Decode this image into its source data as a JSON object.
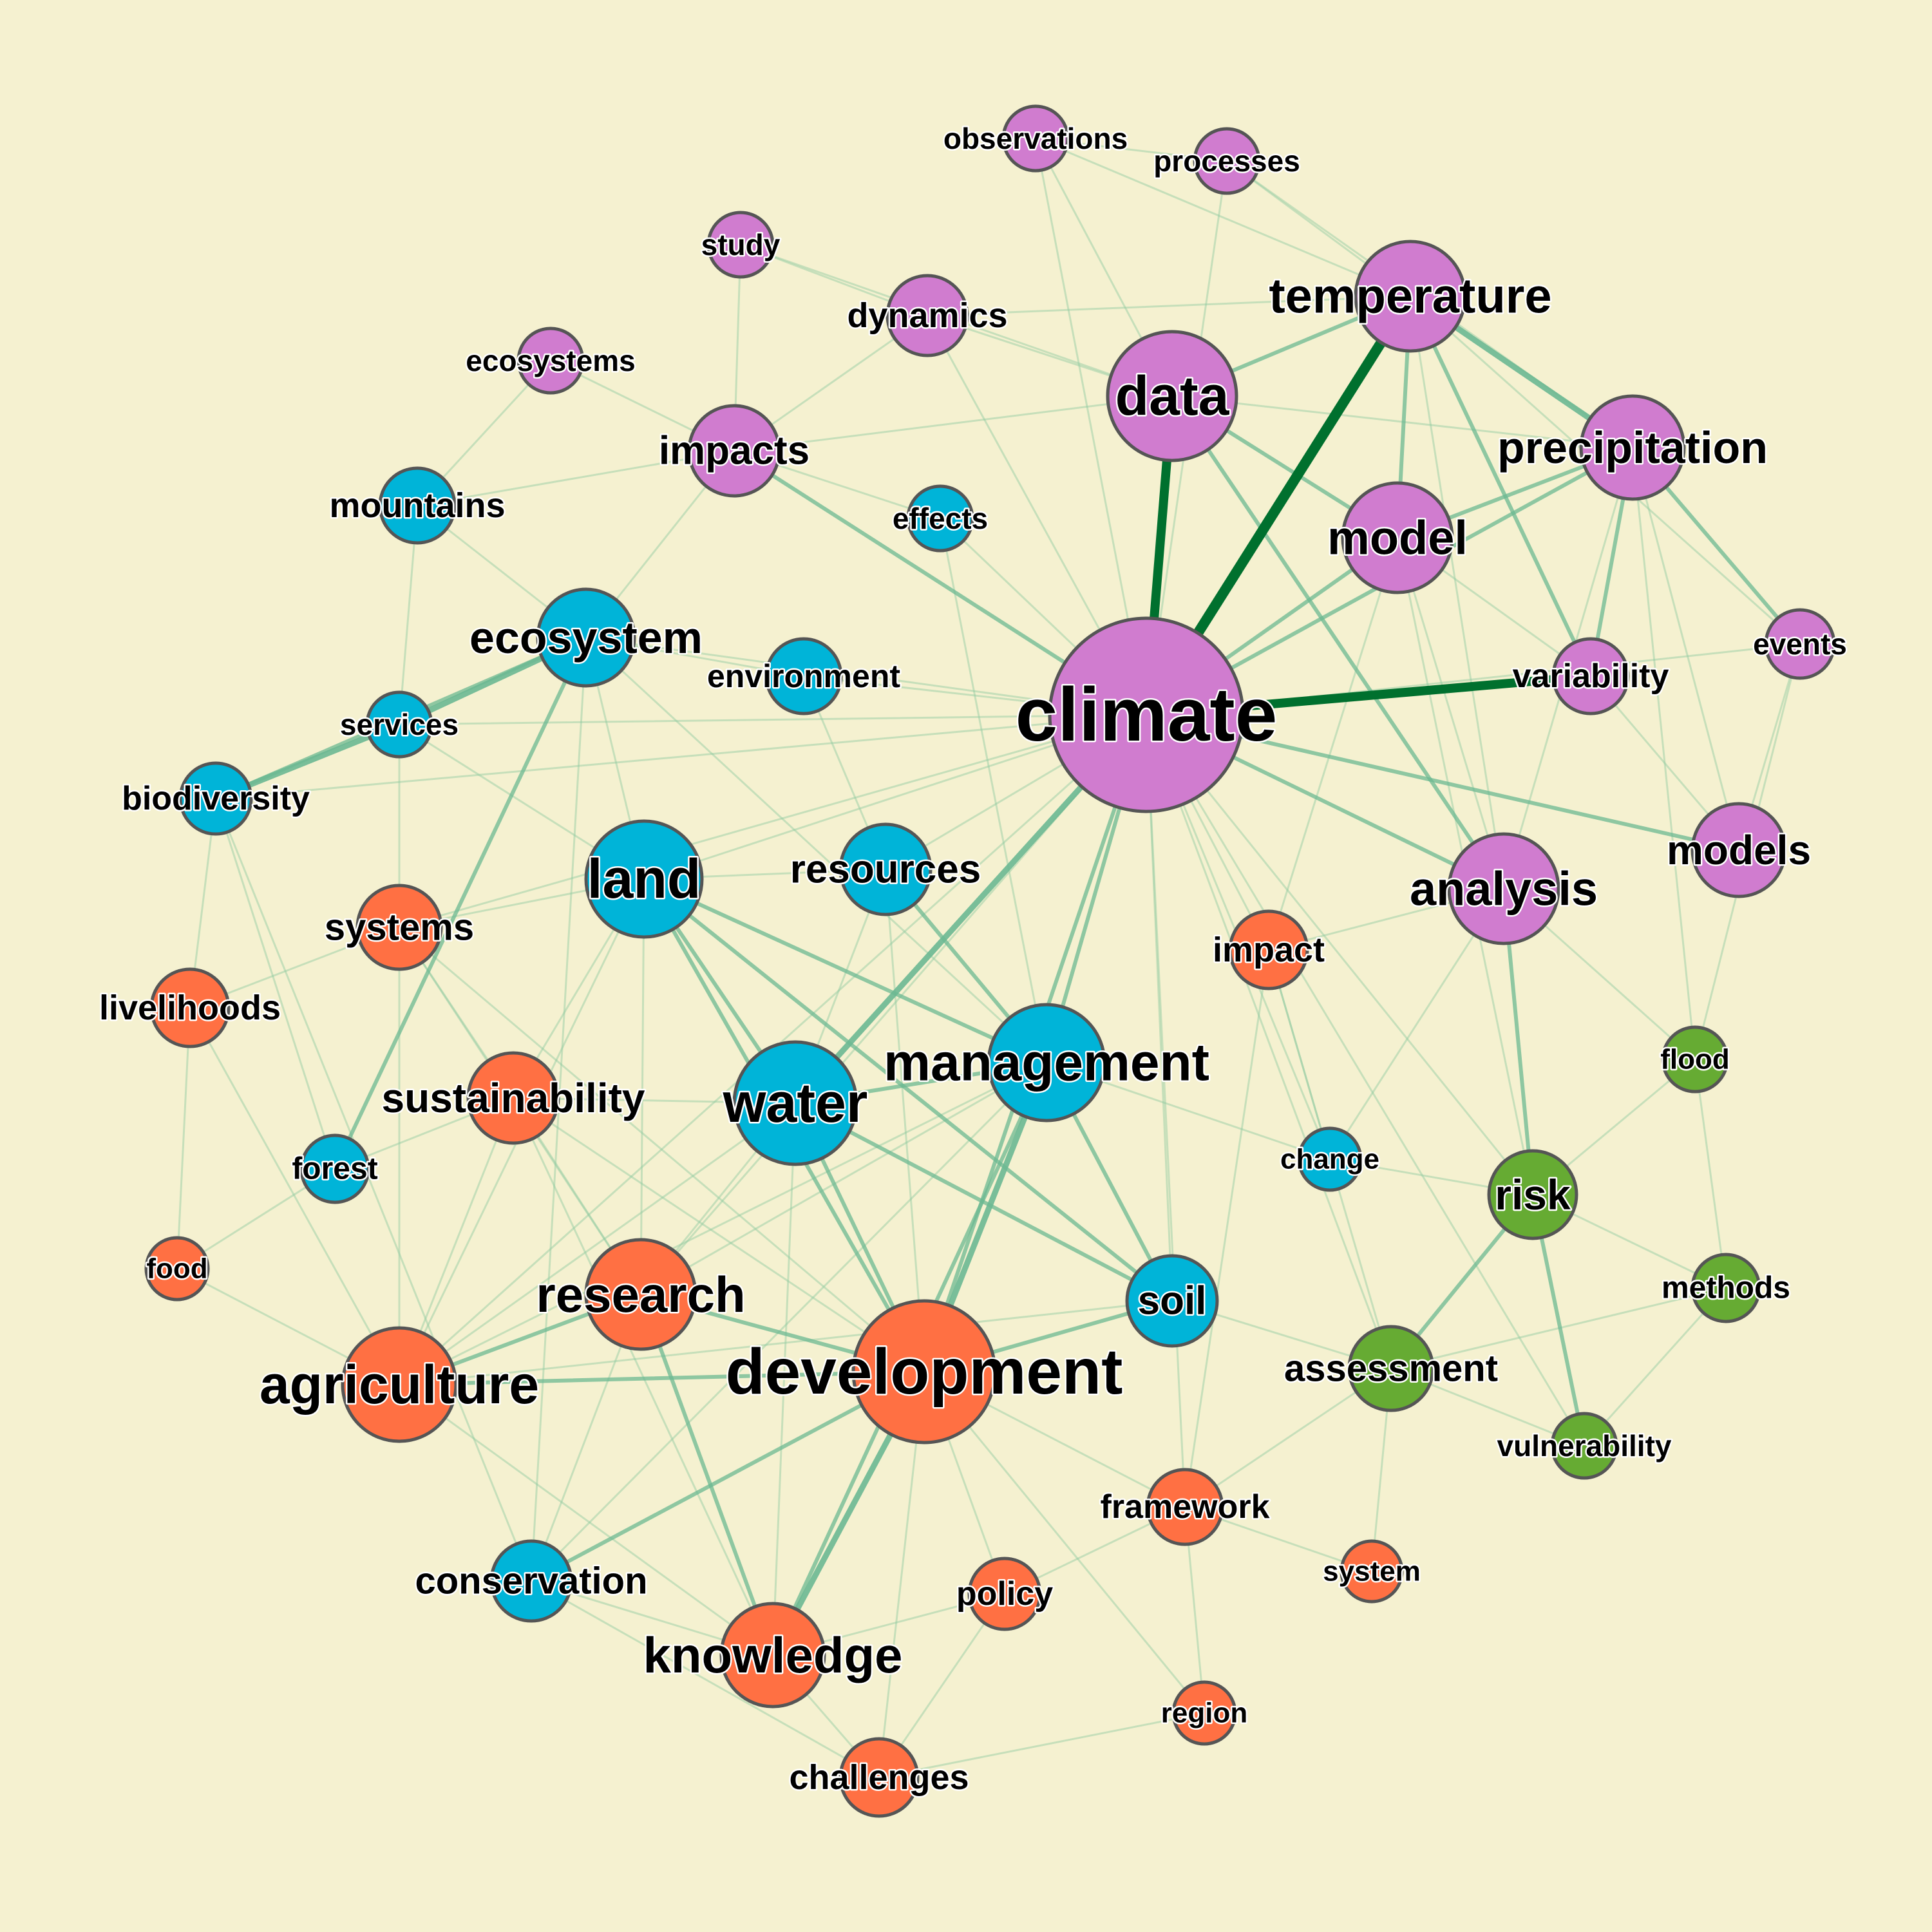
{
  "colors": {
    "background": "#f5f1d0",
    "purple": "#d07ccf",
    "blue": "#00b4d8",
    "orange": "#ff7043",
    "green": "#66ab33",
    "edge_light": "#8fc9a0",
    "edge_mid": "#6bb892",
    "edge_strong": "#00702e"
  },
  "nodes": [
    {
      "id": "climate",
      "label": "climate",
      "group": "purple"
    },
    {
      "id": "data",
      "label": "data",
      "group": "purple"
    },
    {
      "id": "temperature",
      "label": "temperature",
      "group": "purple"
    },
    {
      "id": "precipitation",
      "label": "precipitation",
      "group": "purple"
    },
    {
      "id": "model",
      "label": "model",
      "group": "purple"
    },
    {
      "id": "analysis",
      "label": "analysis",
      "group": "purple"
    },
    {
      "id": "models",
      "label": "models",
      "group": "purple"
    },
    {
      "id": "variability",
      "label": "variability",
      "group": "purple"
    },
    {
      "id": "events",
      "label": "events",
      "group": "purple"
    },
    {
      "id": "impacts",
      "label": "impacts",
      "group": "purple"
    },
    {
      "id": "dynamics",
      "label": "dynamics",
      "group": "purple"
    },
    {
      "id": "study",
      "label": "study",
      "group": "purple"
    },
    {
      "id": "observations",
      "label": "observations",
      "group": "purple"
    },
    {
      "id": "processes",
      "label": "processes",
      "group": "purple"
    },
    {
      "id": "ecosystems",
      "label": "ecosystems",
      "group": "purple"
    },
    {
      "id": "mountains",
      "label": "mountains",
      "group": "blue"
    },
    {
      "id": "effects",
      "label": "effects",
      "group": "blue"
    },
    {
      "id": "ecosystem",
      "label": "ecosystem",
      "group": "blue"
    },
    {
      "id": "environment",
      "label": "environment",
      "group": "blue"
    },
    {
      "id": "services",
      "label": "services",
      "group": "blue"
    },
    {
      "id": "biodiversity",
      "label": "biodiversity",
      "group": "blue"
    },
    {
      "id": "land",
      "label": "land",
      "group": "blue"
    },
    {
      "id": "resources",
      "label": "resources",
      "group": "blue"
    },
    {
      "id": "management",
      "label": "management",
      "group": "blue"
    },
    {
      "id": "water",
      "label": "water",
      "group": "blue"
    },
    {
      "id": "forest",
      "label": "forest",
      "group": "blue"
    },
    {
      "id": "change",
      "label": "change",
      "group": "blue"
    },
    {
      "id": "soil",
      "label": "soil",
      "group": "blue"
    },
    {
      "id": "conservation",
      "label": "conservation",
      "group": "blue"
    },
    {
      "id": "systems",
      "label": "systems",
      "group": "orange"
    },
    {
      "id": "livelihoods",
      "label": "livelihoods",
      "group": "orange"
    },
    {
      "id": "impact",
      "label": "impact",
      "group": "orange"
    },
    {
      "id": "sustainability",
      "label": "sustainability",
      "group": "orange"
    },
    {
      "id": "food",
      "label": "food",
      "group": "orange"
    },
    {
      "id": "research",
      "label": "research",
      "group": "orange"
    },
    {
      "id": "agriculture",
      "label": "agriculture",
      "group": "orange"
    },
    {
      "id": "development",
      "label": "development",
      "group": "orange"
    },
    {
      "id": "framework",
      "label": "framework",
      "group": "orange"
    },
    {
      "id": "system",
      "label": "system",
      "group": "orange"
    },
    {
      "id": "policy",
      "label": "policy",
      "group": "orange"
    },
    {
      "id": "knowledge",
      "label": "knowledge",
      "group": "orange"
    },
    {
      "id": "region",
      "label": "region",
      "group": "orange"
    },
    {
      "id": "challenges",
      "label": "challenges",
      "group": "orange"
    },
    {
      "id": "flood",
      "label": "flood",
      "group": "green"
    },
    {
      "id": "risk",
      "label": "risk",
      "group": "green"
    },
    {
      "id": "methods",
      "label": "methods",
      "group": "green"
    },
    {
      "id": "assessment",
      "label": "assessment",
      "group": "green"
    },
    {
      "id": "vulnerability",
      "label": "vulnerability",
      "group": "green"
    }
  ],
  "edges": [
    [
      "climate",
      "temperature",
      5
    ],
    [
      "climate",
      "data",
      4
    ],
    [
      "climate",
      "variability",
      4
    ],
    [
      "climate",
      "water",
      3
    ],
    [
      "climate",
      "model",
      2
    ],
    [
      "climate",
      "precipitation",
      2
    ],
    [
      "climate",
      "analysis",
      2
    ],
    [
      "climate",
      "impacts",
      2
    ],
    [
      "climate",
      "management",
      2
    ],
    [
      "climate",
      "development",
      2
    ],
    [
      "climate",
      "ecosystem",
      1
    ],
    [
      "climate",
      "models",
      2
    ],
    [
      "climate",
      "events",
      1
    ],
    [
      "climate",
      "dynamics",
      1
    ],
    [
      "climate",
      "land",
      1
    ],
    [
      "climate",
      "resources",
      1
    ],
    [
      "climate",
      "environment",
      1
    ],
    [
      "climate",
      "effects",
      1
    ],
    [
      "climate",
      "impact",
      1
    ],
    [
      "climate",
      "risk",
      1
    ],
    [
      "climate",
      "assessment",
      1
    ],
    [
      "climate",
      "soil",
      1
    ],
    [
      "climate",
      "observations",
      1
    ],
    [
      "climate",
      "processes",
      1
    ],
    [
      "climate",
      "agriculture",
      1
    ],
    [
      "climate",
      "research",
      1
    ],
    [
      "climate",
      "change",
      1
    ],
    [
      "climate",
      "services",
      1
    ],
    [
      "climate",
      "biodiversity",
      1
    ],
    [
      "climate",
      "systems",
      1
    ],
    [
      "climate",
      "vulnerability",
      1
    ],
    [
      "climate",
      "framework",
      1
    ],
    [
      "temperature",
      "precipitation",
      3
    ],
    [
      "temperature",
      "data",
      2
    ],
    [
      "temperature",
      "model",
      2
    ],
    [
      "temperature",
      "variability",
      2
    ],
    [
      "temperature",
      "analysis",
      1
    ],
    [
      "temperature",
      "dynamics",
      1
    ],
    [
      "temperature",
      "processes",
      1
    ],
    [
      "temperature",
      "events",
      1
    ],
    [
      "temperature",
      "observations",
      1
    ],
    [
      "data",
      "model",
      2
    ],
    [
      "data",
      "analysis",
      2
    ],
    [
      "data",
      "dynamics",
      1
    ],
    [
      "data",
      "observations",
      1
    ],
    [
      "data",
      "precipitation",
      1
    ],
    [
      "data",
      "impacts",
      1
    ],
    [
      "data",
      "study",
      1
    ],
    [
      "precipitation",
      "model",
      2
    ],
    [
      "precipitation",
      "variability",
      2
    ],
    [
      "precipitation",
      "events",
      2
    ],
    [
      "precipitation",
      "analysis",
      1
    ],
    [
      "precipitation",
      "models",
      1
    ],
    [
      "precipitation",
      "flood",
      1
    ],
    [
      "precipitation",
      "processes",
      1
    ],
    [
      "model",
      "analysis",
      1
    ],
    [
      "model",
      "variability",
      1
    ],
    [
      "model",
      "impact",
      1
    ],
    [
      "model",
      "risk",
      1
    ],
    [
      "analysis",
      "risk",
      2
    ],
    [
      "analysis",
      "change",
      1
    ],
    [
      "analysis",
      "flood",
      1
    ],
    [
      "analysis",
      "impact",
      1
    ],
    [
      "models",
      "variability",
      1
    ],
    [
      "events",
      "flood",
      1
    ],
    [
      "events",
      "models",
      1
    ],
    [
      "risk",
      "vulnerability",
      2
    ],
    [
      "risk",
      "assessment",
      2
    ],
    [
      "risk",
      "flood",
      1
    ],
    [
      "risk",
      "methods",
      1
    ],
    [
      "risk",
      "change",
      1
    ],
    [
      "assessment",
      "vulnerability",
      1
    ],
    [
      "assessment",
      "methods",
      1
    ],
    [
      "flood",
      "methods",
      1
    ],
    [
      "vulnerability",
      "methods",
      1
    ],
    [
      "ecosystem",
      "services",
      3
    ],
    [
      "ecosystem",
      "biodiversity",
      2
    ],
    [
      "ecosystem",
      "forest",
      2
    ],
    [
      "ecosystem",
      "mountains",
      1
    ],
    [
      "ecosystem",
      "land",
      1
    ],
    [
      "ecosystem",
      "management",
      1
    ],
    [
      "ecosystem",
      "impacts",
      1
    ],
    [
      "ecosystem",
      "conservation",
      1
    ],
    [
      "services",
      "biodiversity",
      3
    ],
    [
      "services",
      "systems",
      1
    ],
    [
      "services",
      "land",
      1
    ],
    [
      "biodiversity",
      "conservation",
      1
    ],
    [
      "biodiversity",
      "livelihoods",
      1
    ],
    [
      "biodiversity",
      "forest",
      1
    ],
    [
      "mountains",
      "impacts",
      1
    ],
    [
      "mountains",
      "services",
      1
    ],
    [
      "mountains",
      "ecosystems",
      1
    ],
    [
      "ecosystems",
      "impacts",
      1
    ],
    [
      "study",
      "impacts",
      1
    ],
    [
      "study",
      "dynamics",
      1
    ],
    [
      "land",
      "management",
      2
    ],
    [
      "land",
      "water",
      2
    ],
    [
      "land",
      "soil",
      2
    ],
    [
      "land",
      "development",
      2
    ],
    [
      "land",
      "agriculture",
      1
    ],
    [
      "land",
      "resources",
      1
    ],
    [
      "land",
      "sustainability",
      1
    ],
    [
      "land",
      "research",
      1
    ],
    [
      "land",
      "systems",
      1
    ],
    [
      "resources",
      "management",
      2
    ],
    [
      "resources",
      "water",
      1
    ],
    [
      "resources",
      "development",
      1
    ],
    [
      "management",
      "water",
      2
    ],
    [
      "management",
      "development",
      3
    ],
    [
      "management",
      "soil",
      2
    ],
    [
      "management",
      "change",
      1
    ],
    [
      "management",
      "knowledge",
      2
    ],
    [
      "management",
      "conservation",
      1
    ],
    [
      "management",
      "research",
      1
    ],
    [
      "management",
      "agriculture",
      1
    ],
    [
      "water",
      "development",
      2
    ],
    [
      "water",
      "soil",
      2
    ],
    [
      "water",
      "agriculture",
      1
    ],
    [
      "water",
      "research",
      1
    ],
    [
      "water",
      "sustainability",
      1
    ],
    [
      "water",
      "knowledge",
      1
    ],
    [
      "soil",
      "development",
      2
    ],
    [
      "soil",
      "agriculture",
      1
    ],
    [
      "soil",
      "assessment",
      1
    ],
    [
      "development",
      "agriculture",
      2
    ],
    [
      "development",
      "research",
      2
    ],
    [
      "development",
      "knowledge",
      3
    ],
    [
      "development",
      "conservation",
      2
    ],
    [
      "development",
      "policy",
      1
    ],
    [
      "development",
      "framework",
      1
    ],
    [
      "development",
      "challenges",
      1
    ],
    [
      "development",
      "sustainability",
      1
    ],
    [
      "development",
      "systems",
      1
    ],
    [
      "development",
      "region",
      1
    ],
    [
      "research",
      "agriculture",
      2
    ],
    [
      "research",
      "knowledge",
      2
    ],
    [
      "research",
      "sustainability",
      1
    ],
    [
      "research",
      "systems",
      1
    ],
    [
      "research",
      "conservation",
      1
    ],
    [
      "agriculture",
      "knowledge",
      1
    ],
    [
      "agriculture",
      "food",
      1
    ],
    [
      "agriculture",
      "sustainability",
      1
    ],
    [
      "agriculture",
      "livelihoods",
      1
    ],
    [
      "agriculture",
      "systems",
      1
    ],
    [
      "knowledge",
      "challenges",
      1
    ],
    [
      "knowledge",
      "conservation",
      1
    ],
    [
      "knowledge",
      "policy",
      1
    ],
    [
      "knowledge",
      "sustainability",
      1
    ],
    [
      "framework",
      "region",
      1
    ],
    [
      "framework",
      "system",
      1
    ],
    [
      "framework",
      "assessment",
      1
    ],
    [
      "framework",
      "policy",
      1
    ],
    [
      "system",
      "assessment",
      1
    ],
    [
      "impact",
      "framework",
      1
    ],
    [
      "impact",
      "change",
      1
    ],
    [
      "impact",
      "assessment",
      1
    ],
    [
      "sustainability",
      "forest",
      1
    ],
    [
      "sustainability",
      "systems",
      1
    ],
    [
      "systems",
      "livelihoods",
      1
    ],
    [
      "forest",
      "food",
      1
    ],
    [
      "livelihoods",
      "food",
      1
    ],
    [
      "effects",
      "impacts",
      1
    ],
    [
      "effects",
      "management",
      1
    ],
    [
      "environment",
      "resources",
      1
    ],
    [
      "environment",
      "ecosystem",
      1
    ],
    [
      "dynamics",
      "impacts",
      1
    ],
    [
      "observations",
      "processes",
      1
    ],
    [
      "challenges",
      "region",
      1
    ],
    [
      "challenges",
      "policy",
      1
    ],
    [
      "conservation",
      "challenges",
      1
    ]
  ]
}
